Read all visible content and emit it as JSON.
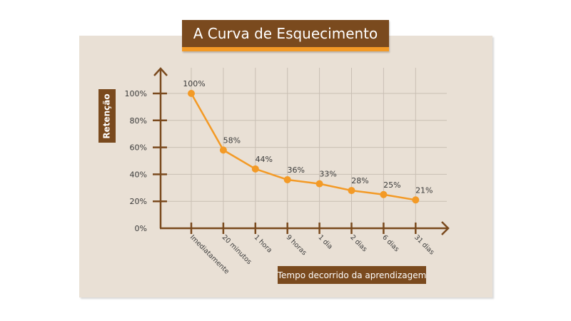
{
  "chart_data": {
    "type": "line",
    "title": "A Curva de Esquecimento",
    "xlabel": "Tempo decorrido da aprendizagem",
    "ylabel": "Retenção",
    "categories": [
      "Imediatamente",
      "20 minutos",
      "1 hora",
      "9 horas",
      "1 dia",
      "2 dias",
      "6 dias",
      "31 dias"
    ],
    "values": [
      100,
      58,
      44,
      36,
      33,
      28,
      25,
      21
    ],
    "value_labels": [
      "100%",
      "58%",
      "44%",
      "36%",
      "33%",
      "28%",
      "25%",
      "21%"
    ],
    "yticks": [
      "0%",
      "20%",
      "40%",
      "60%",
      "80%",
      "100%"
    ],
    "ylim": [
      0,
      100
    ],
    "grid": true,
    "legend": null,
    "colors": {
      "line": "#f39a26",
      "axis": "#7a4a1e",
      "grid": "#c9bfb4",
      "panel": "#e9e0d5",
      "label_box": "#7a4a1e"
    }
  }
}
